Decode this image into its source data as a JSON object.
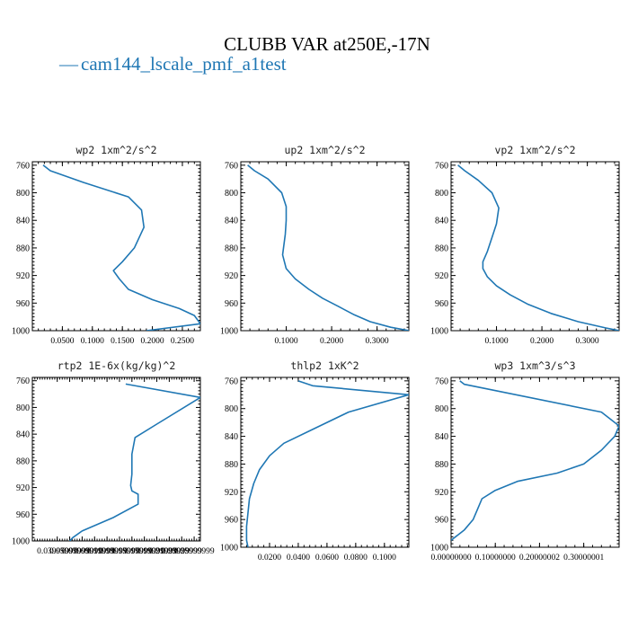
{
  "chart_data": {
    "type": "line",
    "title": "CLUBB VAR at250E,-17N",
    "series_name": "cam144_lscale_pmf_a1test",
    "series_color": "#1f77b4",
    "legend_marker": "—",
    "panels": [
      {
        "title": "wp2   1xm^2/s^2",
        "ylim": [
          1000,
          755
        ],
        "xlim": [
          0.0,
          0.28
        ],
        "yticks": [
          760,
          800,
          840,
          880,
          920,
          960,
          1000
        ],
        "xticks": [
          0.05,
          0.1,
          0.15,
          0.2,
          0.25
        ],
        "xtick_labels": [
          "0.0500",
          "0.1000",
          "0.1500",
          "0.2000",
          "0.2500"
        ],
        "x": [
          0.018,
          0.03,
          0.085,
          0.16,
          0.182,
          0.186,
          0.17,
          0.15,
          0.135,
          0.145,
          0.16,
          0.2,
          0.245,
          0.27,
          0.28,
          0.19
        ],
        "y": [
          760,
          768,
          785,
          806,
          825,
          850,
          880,
          900,
          913,
          925,
          940,
          955,
          968,
          978,
          990,
          1000
        ]
      },
      {
        "title": "up2   1xm^2/s^2",
        "ylim": [
          1000,
          755
        ],
        "xlim": [
          0.0,
          0.37
        ],
        "yticks": [
          760,
          800,
          840,
          880,
          920,
          960,
          1000
        ],
        "xticks": [
          0.1,
          0.2,
          0.3
        ],
        "xtick_labels": [
          "0.1000",
          "0.2000",
          "0.3000"
        ],
        "x": [
          0.015,
          0.03,
          0.06,
          0.09,
          0.1,
          0.1,
          0.098,
          0.092,
          0.1,
          0.12,
          0.15,
          0.18,
          0.215,
          0.25,
          0.285,
          0.33,
          0.37
        ],
        "y": [
          760,
          768,
          780,
          800,
          820,
          840,
          860,
          890,
          910,
          925,
          940,
          953,
          965,
          977,
          987,
          995,
          1000
        ]
      },
      {
        "title": "vp2   1xm^2/s^2",
        "ylim": [
          1000,
          755
        ],
        "xlim": [
          0.0,
          0.37
        ],
        "yticks": [
          760,
          800,
          840,
          880,
          920,
          960,
          1000
        ],
        "xticks": [
          0.1,
          0.2,
          0.3
        ],
        "xtick_labels": [
          "0.1000",
          "0.2000",
          "0.3000"
        ],
        "x": [
          0.015,
          0.03,
          0.06,
          0.09,
          0.105,
          0.1,
          0.09,
          0.08,
          0.07,
          0.07,
          0.08,
          0.1,
          0.13,
          0.17,
          0.22,
          0.28,
          0.34,
          0.37
        ],
        "y": [
          760,
          768,
          782,
          800,
          822,
          845,
          865,
          885,
          900,
          910,
          922,
          935,
          948,
          962,
          975,
          987,
          996,
          1000
        ]
      },
      {
        "title": "rtp2   1E-6x(kg/kg)^2",
        "ylim": [
          1000,
          755
        ],
        "xlim": [
          0.0,
          0.27
        ],
        "yticks": [
          760,
          800,
          840,
          880,
          920,
          960,
          1000
        ],
        "xticks": [
          0.04,
          0.06,
          0.08,
          0.1,
          0.12,
          0.14,
          0.16,
          0.18,
          0.2,
          0.22,
          0.24,
          0.26
        ],
        "xtick_labels": [
          "0.03999999",
          "0.05999999",
          "0.07999999",
          "0.09999999",
          "0.11999999",
          "0.13999999",
          "0.15999999",
          "0.17999999",
          "0.19999999",
          "0.21999999",
          "0.23999999",
          "0.25999999"
        ],
        "x": [
          0.15,
          0.27,
          0.2,
          0.165,
          0.16,
          0.16,
          0.158,
          0.16,
          0.17,
          0.17,
          0.13,
          0.08,
          0.065,
          0.06
        ],
        "y": [
          765,
          785,
          825,
          845,
          870,
          900,
          917,
          925,
          930,
          945,
          965,
          985,
          995,
          1000
        ]
      },
      {
        "title": "thlp2   1xK^2",
        "ylim": [
          1000,
          755
        ],
        "xlim": [
          0.0,
          0.117
        ],
        "yticks": [
          760,
          800,
          840,
          880,
          920,
          960,
          1000
        ],
        "xticks": [
          0.02,
          0.04,
          0.06,
          0.08,
          0.1
        ],
        "xtick_labels": [
          "0.0200",
          "0.0400",
          "0.0600",
          "0.0800",
          "0.1000"
        ],
        "x": [
          0.04,
          0.05,
          0.117,
          0.075,
          0.05,
          0.03,
          0.02,
          0.013,
          0.009,
          0.006,
          0.005,
          0.004,
          0.004,
          0.005
        ],
        "y": [
          760,
          767,
          780,
          805,
          830,
          850,
          868,
          888,
          908,
          930,
          950,
          970,
          990,
          1000
        ]
      },
      {
        "title": "wp3   1xm^3/s^3",
        "ylim": [
          1000,
          755
        ],
        "xlim": [
          0.0,
          0.38
        ],
        "yticks": [
          760,
          800,
          840,
          880,
          920,
          960,
          1000
        ],
        "xticks": [
          0.0,
          0.1,
          0.2,
          0.3
        ],
        "xtick_labels": [
          "0.00000000",
          "0.10000000",
          "0.20000002",
          "0.30000001"
        ],
        "x": [
          0.02,
          0.03,
          0.34,
          0.38,
          0.37,
          0.34,
          0.3,
          0.24,
          0.15,
          0.1,
          0.07,
          0.06,
          0.05,
          0.03,
          0.0
        ],
        "y": [
          760,
          765,
          805,
          825,
          840,
          860,
          880,
          893,
          905,
          918,
          930,
          945,
          960,
          975,
          990
        ]
      }
    ]
  }
}
